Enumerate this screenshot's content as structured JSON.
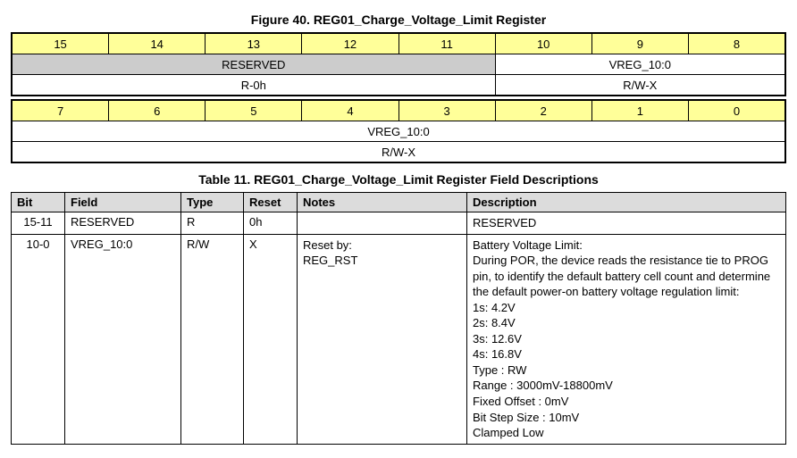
{
  "figure": {
    "title": "Figure 40.  REG01_Charge_Voltage_Limit Register",
    "upper": {
      "bits": [
        "15",
        "14",
        "13",
        "12",
        "11",
        "10",
        "9",
        "8"
      ],
      "fields": [
        {
          "label": "RESERVED",
          "span": 5,
          "reserved": true
        },
        {
          "label": "VREG_10:0",
          "span": 3,
          "reserved": false
        }
      ],
      "access": [
        {
          "label": "R-0h",
          "span": 5
        },
        {
          "label": "R/W-X",
          "span": 3
        }
      ]
    },
    "lower": {
      "bits": [
        "7",
        "6",
        "5",
        "4",
        "3",
        "2",
        "1",
        "0"
      ],
      "fields": [
        {
          "label": "VREG_10:0",
          "span": 8,
          "reserved": false
        }
      ],
      "access": [
        {
          "label": "R/W-X",
          "span": 8
        }
      ]
    }
  },
  "table": {
    "title": "Table 11. REG01_Charge_Voltage_Limit Register Field Descriptions",
    "headers": [
      "Bit",
      "Field",
      "Type",
      "Reset",
      "Notes",
      "Description"
    ],
    "col_widths": [
      "60px",
      "130px",
      "70px",
      "60px",
      "190px",
      ""
    ],
    "rows": [
      {
        "bit": "15-11",
        "field": "RESERVED",
        "type": "R",
        "reset": "0h",
        "notes": [],
        "desc": [
          "RESERVED"
        ]
      },
      {
        "bit": "10-0",
        "field": "VREG_10:0",
        "type": "R/W",
        "reset": "X",
        "notes": [
          "Reset by:",
          "REG_RST"
        ],
        "desc": [
          "Battery Voltage Limit:",
          "During POR, the device reads the resistance tie to PROG pin, to identify the default battery cell count and determine the default power-on battery voltage regulation limit:",
          "1s: 4.2V",
          "2s: 8.4V",
          "3s: 12.6V",
          "4s: 16.8V",
          "Type : RW",
          "Range : 3000mV-18800mV",
          "Fixed Offset : 0mV",
          "Bit Step Size : 10mV",
          "Clamped Low"
        ]
      }
    ]
  }
}
